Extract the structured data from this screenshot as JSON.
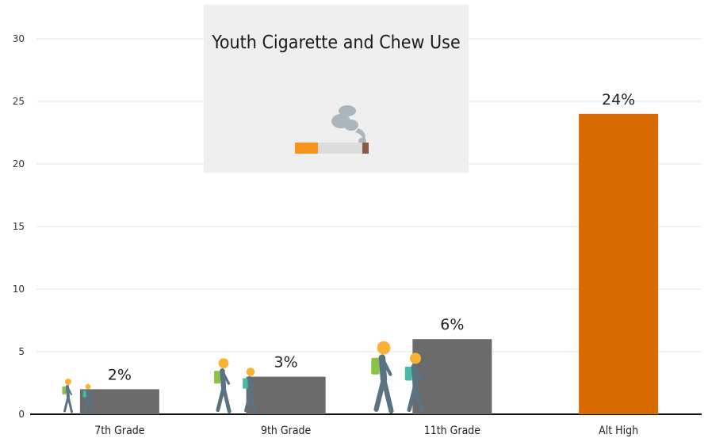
{
  "title": "Youth Cigarette and Chew Use",
  "icons": {
    "title_icon": "cigarette-icon",
    "bar_icon": "students-walking-icon"
  },
  "colors": {
    "bar_default": "#6b6b6b",
    "bar_highlight": "#d86a00",
    "grid": "#e6e6e6",
    "axis": "#111111",
    "panel_bg": "#efefef",
    "backpack_green": "#8bc34a",
    "backpack_teal": "#4bb7a5",
    "head": "#f9b233",
    "body": "#5a7382"
  },
  "chart_data": {
    "type": "bar",
    "categories": [
      "7th Grade",
      "9th Grade",
      "11th Grade",
      "Alt High"
    ],
    "values": [
      2,
      3,
      6,
      24
    ],
    "data_labels": [
      "2%",
      "3%",
      "6%",
      "24%"
    ],
    "highlight": "Alt High",
    "y_ticks": [
      0,
      5,
      10,
      15,
      20,
      25,
      30
    ],
    "ylim": [
      0,
      30
    ],
    "grid": true,
    "legend": "none",
    "xlabel": "",
    "ylabel": ""
  }
}
